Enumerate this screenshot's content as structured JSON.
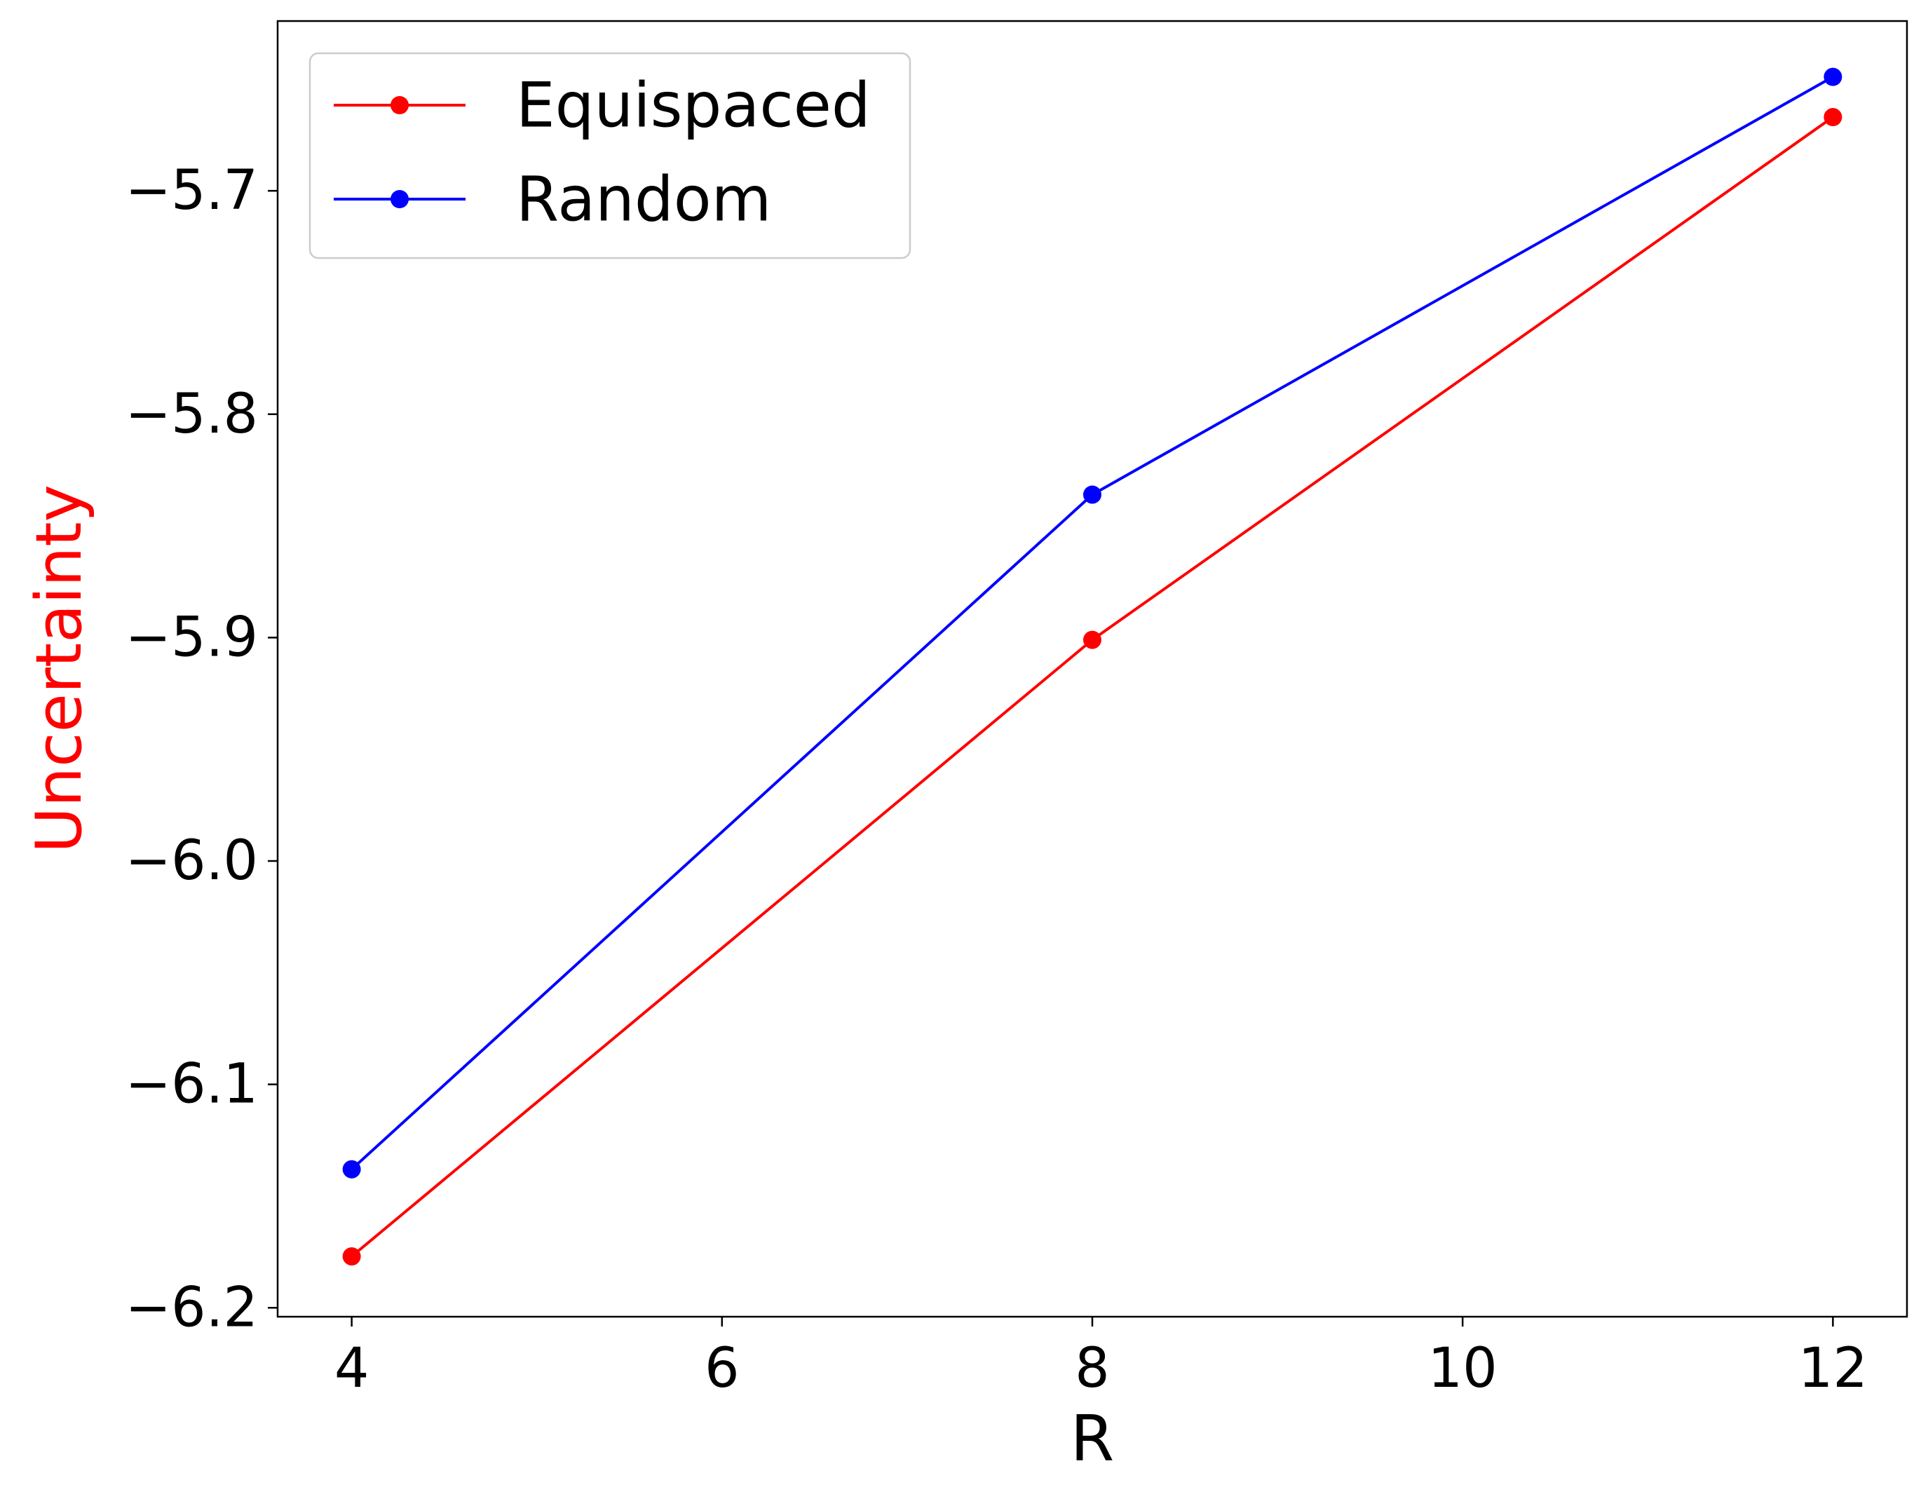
{
  "chart_data": {
    "type": "line",
    "title": "",
    "xlabel": "R",
    "ylabel": "Uncertainty",
    "ylabel_color": "#ff0000",
    "xlim": [
      3.6,
      12.4
    ],
    "ylim": [
      -6.204,
      -5.624
    ],
    "x_ticks": [
      4,
      6,
      8,
      10,
      12
    ],
    "x_tick_labels": [
      "4",
      "6",
      "8",
      "10",
      "12"
    ],
    "y_ticks": [
      -6.2,
      -6.1,
      -6.0,
      -5.9,
      -5.8,
      -5.7
    ],
    "y_tick_labels": [
      "−6.2",
      "−6.1",
      "−6.0",
      "−5.9",
      "−5.8",
      "−5.7"
    ],
    "grid": false,
    "legend_position": "top-left",
    "x": [
      4,
      8,
      12
    ],
    "series": [
      {
        "name": "Equispaced",
        "color": "#ff0000",
        "values": [
          -6.177,
          -5.901,
          -5.667
        ]
      },
      {
        "name": "Random",
        "color": "#0000ff",
        "values": [
          -6.138,
          -5.836,
          -5.649
        ]
      }
    ]
  }
}
